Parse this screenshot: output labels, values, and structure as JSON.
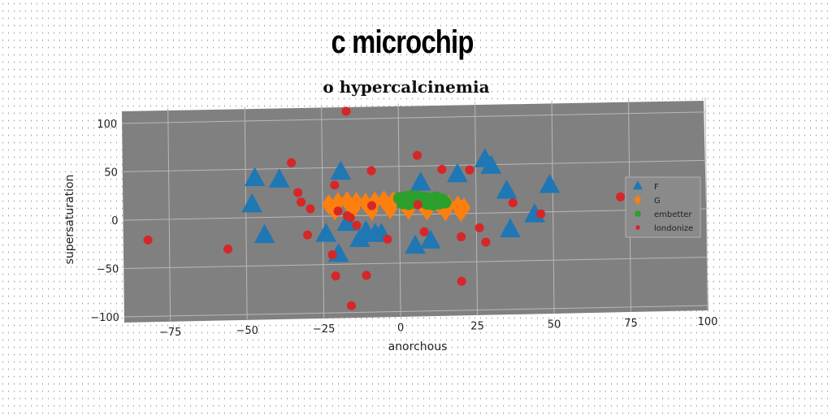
{
  "title": "c microchip",
  "subtitle": "o hypercalcinemia",
  "chart_data": {
    "type": "scatter",
    "xlabel": "anorchous",
    "ylabel": "supersaturation",
    "xlim": [
      -90,
      100
    ],
    "ylim": [
      -105,
      115
    ],
    "xticks": [
      -75,
      -50,
      -25,
      0,
      25,
      50,
      75,
      100
    ],
    "yticks": [
      -100,
      -50,
      0,
      50,
      100
    ],
    "xtick_labels": [
      "−75",
      "−50",
      "−25",
      "0",
      "25",
      "50",
      "75",
      "100"
    ],
    "ytick_labels": [
      "−100",
      "−50",
      "0",
      "50",
      "100"
    ],
    "grid": true,
    "legend_position": "center-right",
    "series": [
      {
        "name": "F",
        "marker": "triangle",
        "color": "#1f77b4",
        "x": [
          -47,
          -48,
          -39,
          -44,
          -19,
          -24,
          -17,
          -20,
          -13,
          -11,
          -6,
          -8,
          5,
          7,
          10,
          19,
          28,
          30,
          35,
          36,
          44,
          49
        ],
        "y": [
          40,
          13,
          38,
          -19,
          45,
          -19,
          -8,
          -40,
          -25,
          -17,
          -20,
          -20,
          -33,
          32,
          -28,
          40,
          55,
          48,
          22,
          -18,
          -3,
          27
        ]
      },
      {
        "name": "G",
        "marker": "diamond",
        "color": "#ff7f0e",
        "x": [
          -23,
          -20,
          -17,
          -14,
          -11,
          -8,
          -5,
          -2,
          1,
          4,
          7,
          10,
          13,
          16,
          19,
          21,
          -21,
          -15,
          -9,
          -3,
          3,
          9,
          15,
          20
        ],
        "y": [
          12,
          14,
          15,
          14,
          13,
          14,
          15,
          14,
          13,
          12,
          12,
          11,
          10,
          9,
          8,
          6,
          6,
          7,
          5,
          6,
          5,
          4,
          3,
          2
        ]
      },
      {
        "name": "embetter",
        "marker": "circle",
        "color": "#2ca02c",
        "x": [
          0,
          2,
          4,
          6,
          8,
          10,
          12,
          14,
          1,
          3,
          5,
          7,
          9,
          11,
          13,
          15
        ],
        "y": [
          17,
          18,
          19,
          18,
          17,
          16,
          17,
          15,
          12,
          11,
          12,
          13,
          11,
          10,
          11,
          12
        ]
      },
      {
        "name": "londonize",
        "marker": "circle",
        "color": "#d62728",
        "x": [
          -17,
          -35,
          -33,
          -32,
          -29,
          -30,
          -21,
          -20,
          -17,
          -16,
          -14,
          -9,
          -9,
          -4,
          -22,
          -21,
          -11,
          -16,
          -82,
          -56,
          6,
          8,
          14,
          20,
          23,
          26,
          28,
          37,
          46,
          72,
          6,
          20
        ],
        "y": [
          108,
          56,
          25,
          15,
          8,
          -19,
          32,
          5,
          0,
          -2,
          -10,
          46,
          10,
          -25,
          -40,
          -62,
          -62,
          -93,
          -21,
          -32,
          61,
          -18,
          46,
          -24,
          45,
          -15,
          -30,
          10,
          -2,
          14,
          10,
          -70
        ]
      }
    ]
  }
}
